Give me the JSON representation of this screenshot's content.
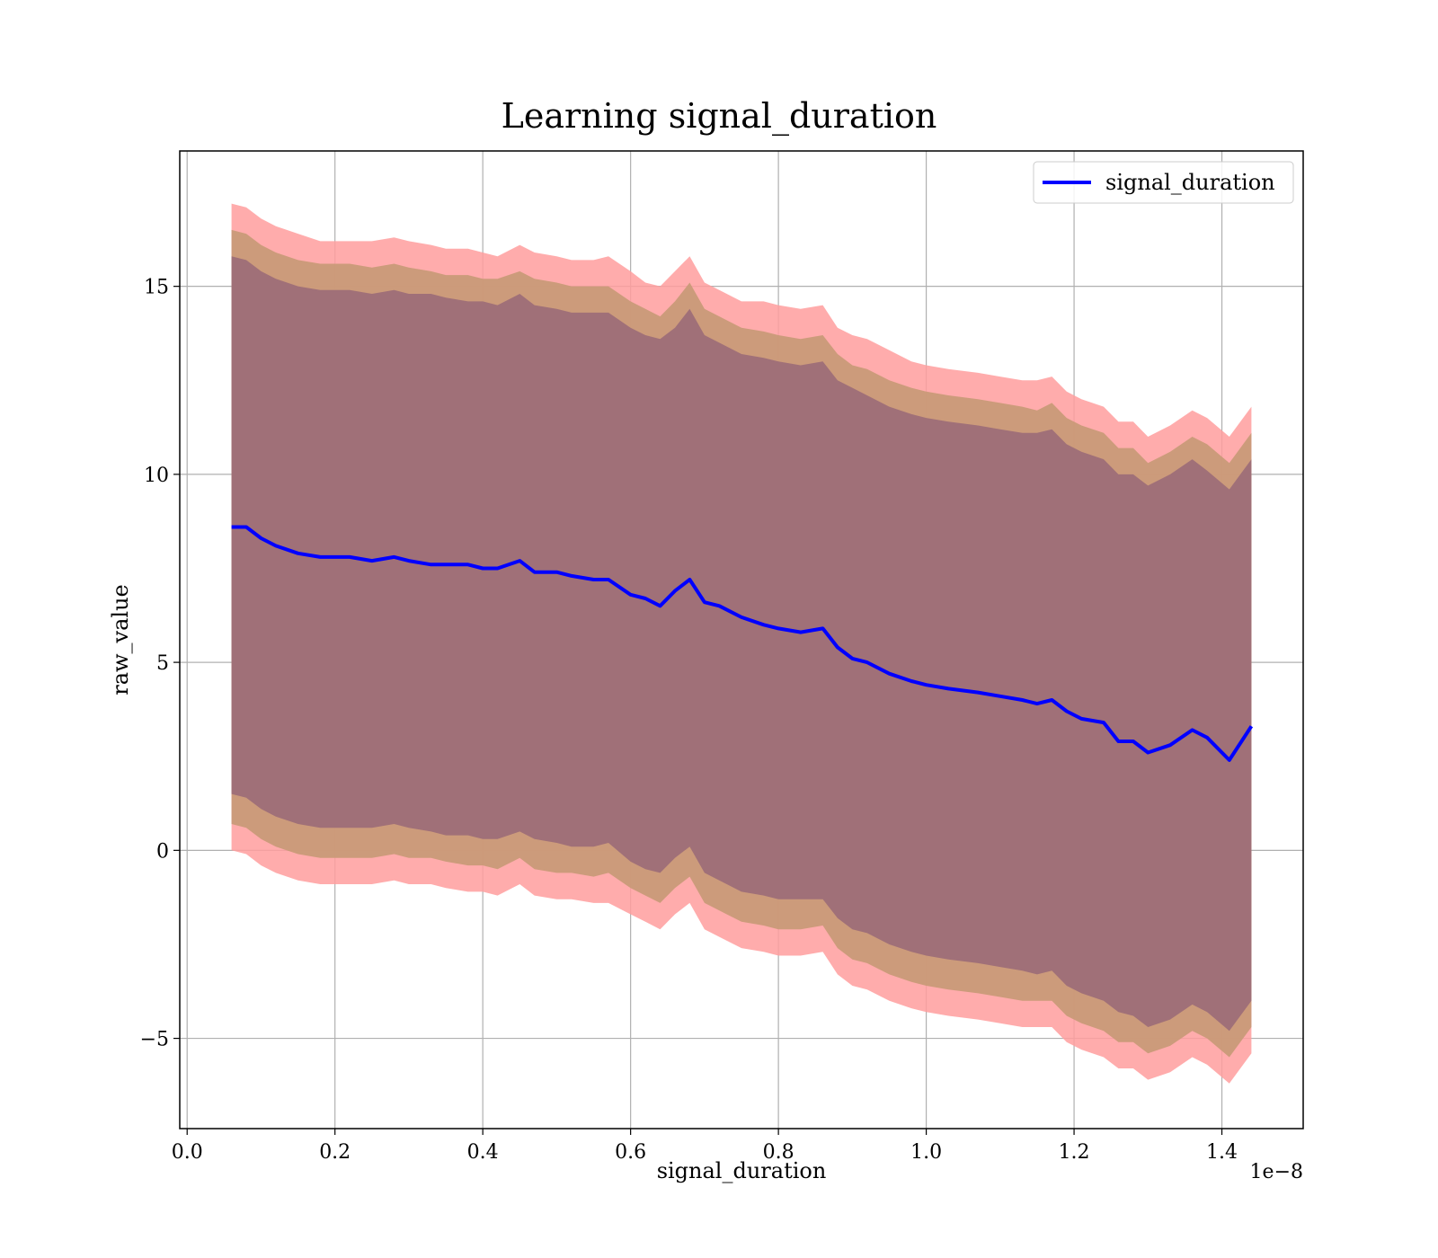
{
  "chart_data": {
    "type": "line",
    "title": "Learning signal_duration",
    "xlabel": "signal_duration",
    "ylabel": "raw_value",
    "x_offset_label": "1e−8",
    "xlim": [
      -1e-10,
      1.51e-08
    ],
    "ylim": [
      -7.4,
      18.6
    ],
    "x_ticks": [
      0.0,
      0.2,
      0.4,
      0.6,
      0.8,
      1.0,
      1.2,
      1.4
    ],
    "x_tick_labels": [
      "0.0",
      "0.2",
      "0.4",
      "0.6",
      "0.8",
      "1.0",
      "1.2",
      "1.4"
    ],
    "y_ticks": [
      -5,
      0,
      5,
      10,
      15
    ],
    "y_tick_labels": [
      "−5",
      "0",
      "5",
      "10",
      "15"
    ],
    "grid": true,
    "legend": {
      "position": "top-right",
      "entries": [
        "signal_duration"
      ]
    },
    "colors": {
      "line": "#0000ff",
      "band_outer": "#ff9e9e",
      "band_middle": "#c99a78",
      "band_inner": "#a07078"
    },
    "series": [
      {
        "name": "signal_duration",
        "x_scale": 1e-08,
        "x": [
          0.06,
          0.08,
          0.1,
          0.12,
          0.15,
          0.18,
          0.2,
          0.22,
          0.25,
          0.28,
          0.3,
          0.33,
          0.35,
          0.38,
          0.4,
          0.42,
          0.45,
          0.47,
          0.5,
          0.52,
          0.55,
          0.57,
          0.6,
          0.62,
          0.64,
          0.66,
          0.68,
          0.7,
          0.72,
          0.75,
          0.78,
          0.8,
          0.83,
          0.86,
          0.88,
          0.9,
          0.92,
          0.95,
          0.98,
          1.0,
          1.03,
          1.07,
          1.1,
          1.13,
          1.15,
          1.17,
          1.19,
          1.21,
          1.24,
          1.26,
          1.28,
          1.3,
          1.33,
          1.36,
          1.38,
          1.41,
          1.44
        ],
        "mean": [
          8.6,
          8.6,
          8.3,
          8.1,
          7.9,
          7.8,
          7.8,
          7.8,
          7.7,
          7.8,
          7.7,
          7.6,
          7.6,
          7.6,
          7.5,
          7.5,
          7.7,
          7.4,
          7.4,
          7.3,
          7.2,
          7.2,
          6.8,
          6.7,
          6.5,
          6.9,
          7.2,
          6.6,
          6.5,
          6.2,
          6.0,
          5.9,
          5.8,
          5.9,
          5.4,
          5.1,
          5.0,
          4.7,
          4.5,
          4.4,
          4.3,
          4.2,
          4.1,
          4.0,
          3.9,
          4.0,
          3.7,
          3.5,
          3.4,
          2.9,
          2.9,
          2.6,
          2.8,
          3.2,
          3.0,
          2.4,
          3.3
        ],
        "band_outer_upper": [
          17.2,
          17.1,
          16.8,
          16.6,
          16.4,
          16.2,
          16.2,
          16.2,
          16.2,
          16.3,
          16.2,
          16.1,
          16.0,
          16.0,
          15.9,
          15.8,
          16.1,
          15.9,
          15.8,
          15.7,
          15.7,
          15.8,
          15.4,
          15.1,
          15.0,
          15.4,
          15.8,
          15.1,
          14.9,
          14.6,
          14.6,
          14.5,
          14.4,
          14.5,
          13.9,
          13.7,
          13.6,
          13.3,
          13.0,
          12.9,
          12.8,
          12.7,
          12.6,
          12.5,
          12.5,
          12.6,
          12.2,
          12.0,
          11.8,
          11.4,
          11.4,
          11.0,
          11.3,
          11.7,
          11.5,
          11.0,
          11.8
        ],
        "band_middle_upper": [
          16.5,
          16.4,
          16.1,
          15.9,
          15.7,
          15.6,
          15.6,
          15.6,
          15.5,
          15.6,
          15.5,
          15.4,
          15.3,
          15.3,
          15.2,
          15.2,
          15.4,
          15.2,
          15.1,
          15.0,
          15.0,
          15.0,
          14.6,
          14.4,
          14.2,
          14.6,
          15.1,
          14.4,
          14.2,
          13.9,
          13.8,
          13.7,
          13.6,
          13.7,
          13.2,
          12.9,
          12.8,
          12.5,
          12.3,
          12.2,
          12.1,
          12.0,
          11.9,
          11.8,
          11.7,
          11.9,
          11.5,
          11.3,
          11.1,
          10.7,
          10.7,
          10.3,
          10.6,
          11.0,
          10.8,
          10.3,
          11.1
        ],
        "band_inner_upper": [
          15.8,
          15.7,
          15.4,
          15.2,
          15.0,
          14.9,
          14.9,
          14.9,
          14.8,
          14.9,
          14.8,
          14.8,
          14.7,
          14.6,
          14.6,
          14.5,
          14.8,
          14.5,
          14.4,
          14.3,
          14.3,
          14.3,
          13.9,
          13.7,
          13.6,
          13.9,
          14.4,
          13.7,
          13.5,
          13.2,
          13.1,
          13.0,
          12.9,
          13.0,
          12.5,
          12.3,
          12.1,
          11.8,
          11.6,
          11.5,
          11.4,
          11.3,
          11.2,
          11.1,
          11.1,
          11.2,
          10.8,
          10.6,
          10.4,
          10.0,
          10.0,
          9.7,
          10.0,
          10.4,
          10.1,
          9.6,
          10.4
        ],
        "band_inner_lower": [
          1.5,
          1.4,
          1.1,
          0.9,
          0.7,
          0.6,
          0.6,
          0.6,
          0.6,
          0.7,
          0.6,
          0.5,
          0.4,
          0.4,
          0.3,
          0.3,
          0.5,
          0.3,
          0.2,
          0.1,
          0.1,
          0.2,
          -0.3,
          -0.5,
          -0.6,
          -0.2,
          0.1,
          -0.6,
          -0.8,
          -1.1,
          -1.2,
          -1.3,
          -1.3,
          -1.3,
          -1.8,
          -2.1,
          -2.2,
          -2.5,
          -2.7,
          -2.8,
          -2.9,
          -3.0,
          -3.1,
          -3.2,
          -3.3,
          -3.2,
          -3.6,
          -3.8,
          -4.0,
          -4.3,
          -4.4,
          -4.7,
          -4.5,
          -4.1,
          -4.3,
          -4.8,
          -4.0
        ],
        "band_middle_lower": [
          0.7,
          0.6,
          0.3,
          0.1,
          -0.1,
          -0.2,
          -0.2,
          -0.2,
          -0.2,
          -0.1,
          -0.2,
          -0.2,
          -0.3,
          -0.4,
          -0.4,
          -0.5,
          -0.2,
          -0.5,
          -0.6,
          -0.6,
          -0.7,
          -0.6,
          -1.0,
          -1.2,
          -1.4,
          -1.0,
          -0.7,
          -1.4,
          -1.6,
          -1.9,
          -2.0,
          -2.1,
          -2.1,
          -2.0,
          -2.6,
          -2.9,
          -3.0,
          -3.3,
          -3.5,
          -3.6,
          -3.7,
          -3.8,
          -3.9,
          -4.0,
          -4.0,
          -4.0,
          -4.4,
          -4.6,
          -4.8,
          -5.1,
          -5.1,
          -5.4,
          -5.2,
          -4.8,
          -5.0,
          -5.5,
          -4.7
        ],
        "band_outer_lower": [
          0.0,
          -0.1,
          -0.4,
          -0.6,
          -0.8,
          -0.9,
          -0.9,
          -0.9,
          -0.9,
          -0.8,
          -0.9,
          -0.9,
          -1.0,
          -1.1,
          -1.1,
          -1.2,
          -0.9,
          -1.2,
          -1.3,
          -1.3,
          -1.4,
          -1.4,
          -1.7,
          -1.9,
          -2.1,
          -1.7,
          -1.4,
          -2.1,
          -2.3,
          -2.6,
          -2.7,
          -2.8,
          -2.8,
          -2.7,
          -3.3,
          -3.6,
          -3.7,
          -4.0,
          -4.2,
          -4.3,
          -4.4,
          -4.5,
          -4.6,
          -4.7,
          -4.7,
          -4.7,
          -5.1,
          -5.3,
          -5.5,
          -5.8,
          -5.8,
          -6.1,
          -5.9,
          -5.5,
          -5.7,
          -6.2,
          -5.4
        ]
      }
    ]
  }
}
